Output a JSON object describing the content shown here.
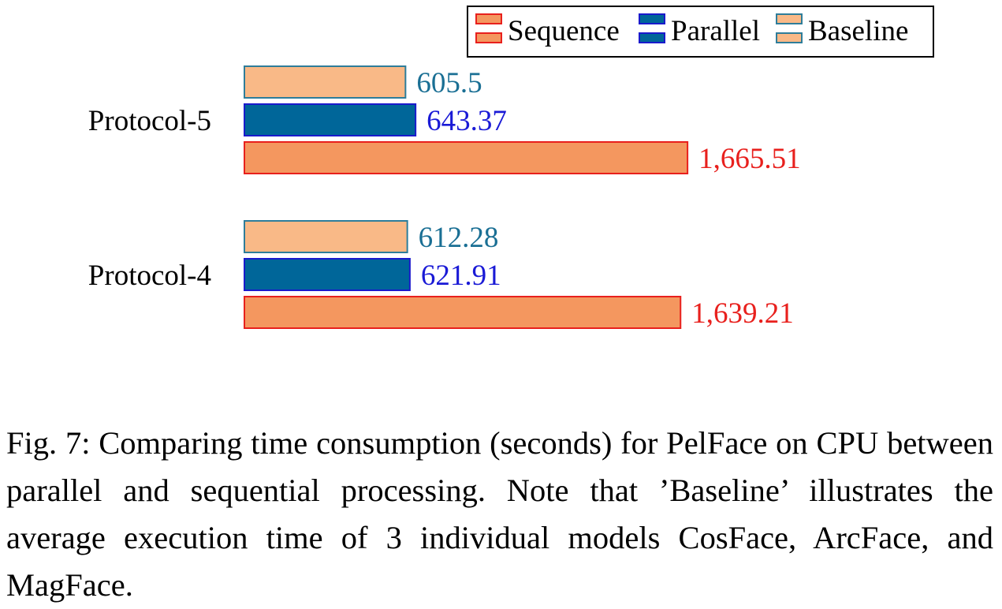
{
  "chart_data": {
    "type": "bar",
    "orientation": "horizontal",
    "categories": [
      "Protocol-5",
      "Protocol-4"
    ],
    "series": [
      {
        "name": "Baseline",
        "values": [
          605.5,
          612.28
        ],
        "labels": [
          "605.5",
          "612.28"
        ],
        "fill": "#f9b987",
        "stroke": "#2e7d9a",
        "label_color": "#1a6f94"
      },
      {
        "name": "Parallel",
        "values": [
          643.37,
          621.91
        ],
        "labels": [
          "643.37",
          "621.91"
        ],
        "fill": "#006699",
        "stroke": "#1a1acc",
        "label_color": "#1a1ad6"
      },
      {
        "name": "Sequence",
        "values": [
          1665.51,
          1639.21
        ],
        "labels": [
          "1,665.51",
          "1,639.21"
        ],
        "fill": "#f4975f",
        "stroke": "#e8201d",
        "label_color": "#e8201d"
      }
    ],
    "legend": {
      "entries": [
        "Sequence",
        "Parallel",
        "Baseline"
      ],
      "placement": "top-right"
    },
    "xlim": [
      0,
      1700
    ]
  },
  "caption": "Fig. 7: Comparing time consumption (seconds) for PelFace on CPU between parallel and sequential processing. Note that ’Baseline’ illustrates the average execution time of 3 individual models CosFace, ArcFace, and MagFace."
}
